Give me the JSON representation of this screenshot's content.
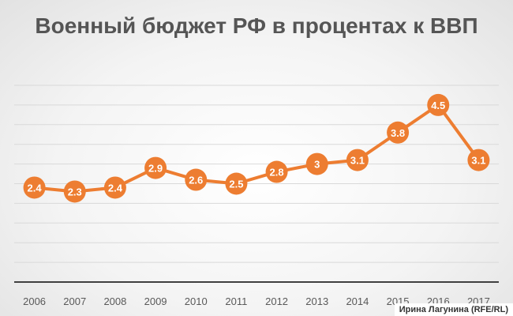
{
  "chart_data": {
    "type": "line",
    "title": "Военный бюджет РФ в процентах к ВВП",
    "x": [
      "2006",
      "2007",
      "2008",
      "2009",
      "2010",
      "2011",
      "2012",
      "2013",
      "2014",
      "2015",
      "2016",
      "2017"
    ],
    "series": [
      {
        "values": [
          2.4,
          2.3,
          2.4,
          2.9,
          2.6,
          2.5,
          2.8,
          3,
          3.1,
          3.8,
          4.5,
          3.1
        ]
      }
    ],
    "data_labels": [
      "2.4",
      "2.3",
      "2.4",
      "2.9",
      "2.6",
      "2.5",
      "2.8",
      "3",
      "3.1",
      "3.8",
      "4.5",
      "3.1"
    ],
    "ylim": [
      0,
      5
    ],
    "grid": true,
    "legend": "none",
    "colors": {
      "line": "#ed7d31",
      "label_text": "#ffffff",
      "axis_text": "#595959",
      "grid": "#d9d9d9"
    }
  },
  "credit": "Ирина Лагунина (RFE/RL)"
}
